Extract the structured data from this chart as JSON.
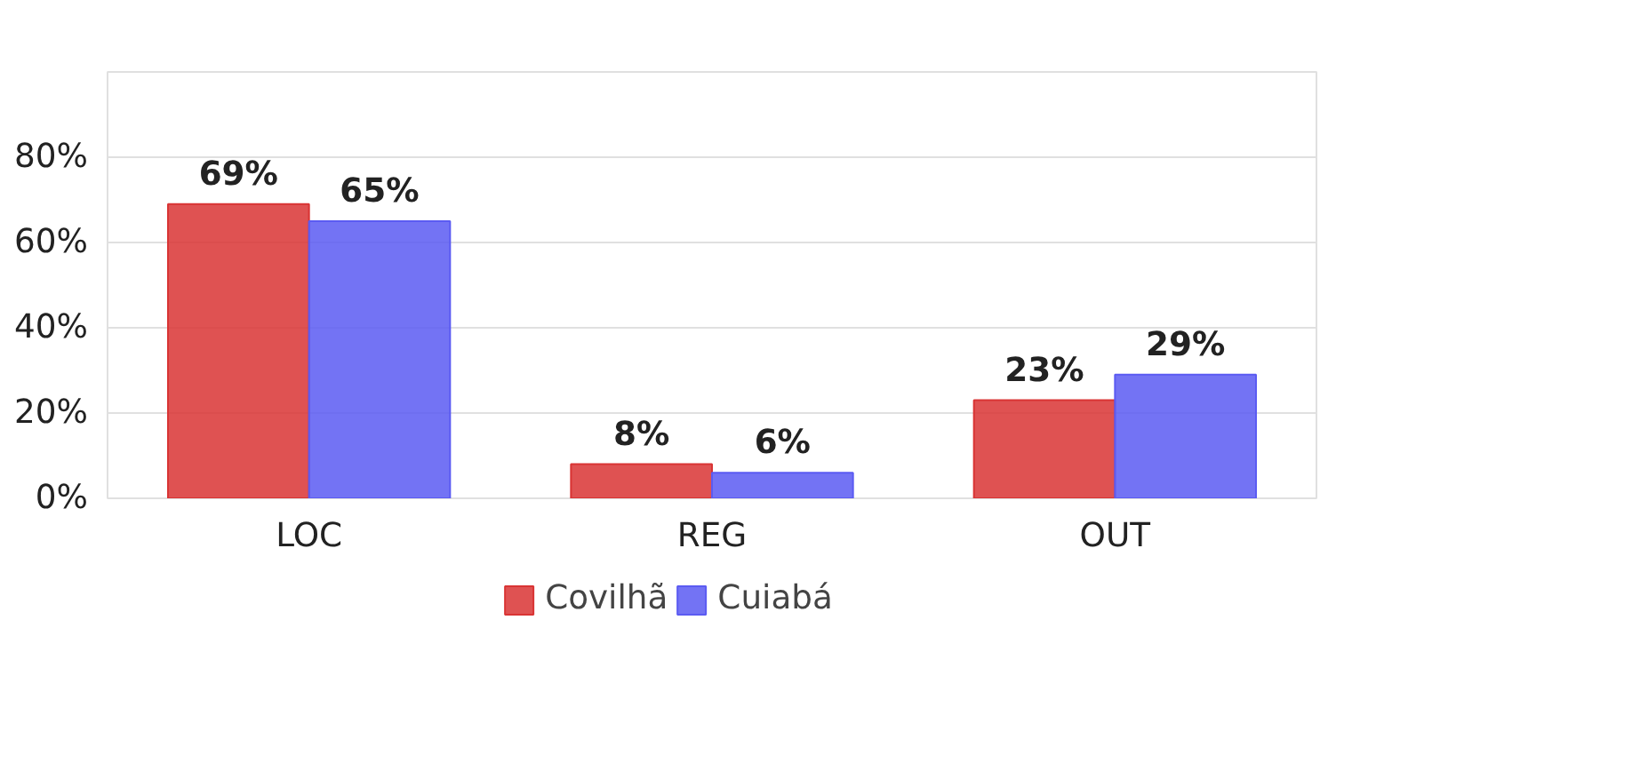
{
  "chart_data": {
    "type": "bar",
    "categories": [
      "LOC",
      "REG",
      "OUT"
    ],
    "series": [
      {
        "name": "Covilhã",
        "color": "#d93434",
        "values": [
          69,
          8,
          23
        ],
        "value_labels": [
          "69%",
          "8%",
          "23%"
        ]
      },
      {
        "name": "Cuiabá",
        "color": "#5b5bf2",
        "values": [
          65,
          6,
          29
        ],
        "value_labels": [
          "65%",
          "6%",
          "29%"
        ]
      }
    ],
    "ylim": [
      0,
      100
    ],
    "yticks": [
      {
        "value": 0,
        "label": "0%"
      },
      {
        "value": 20,
        "label": "20%"
      },
      {
        "value": 40,
        "label": "40%"
      },
      {
        "value": 60,
        "label": "60%"
      },
      {
        "value": 80,
        "label": "80%"
      }
    ],
    "grid": "y",
    "legend": "bottom"
  }
}
